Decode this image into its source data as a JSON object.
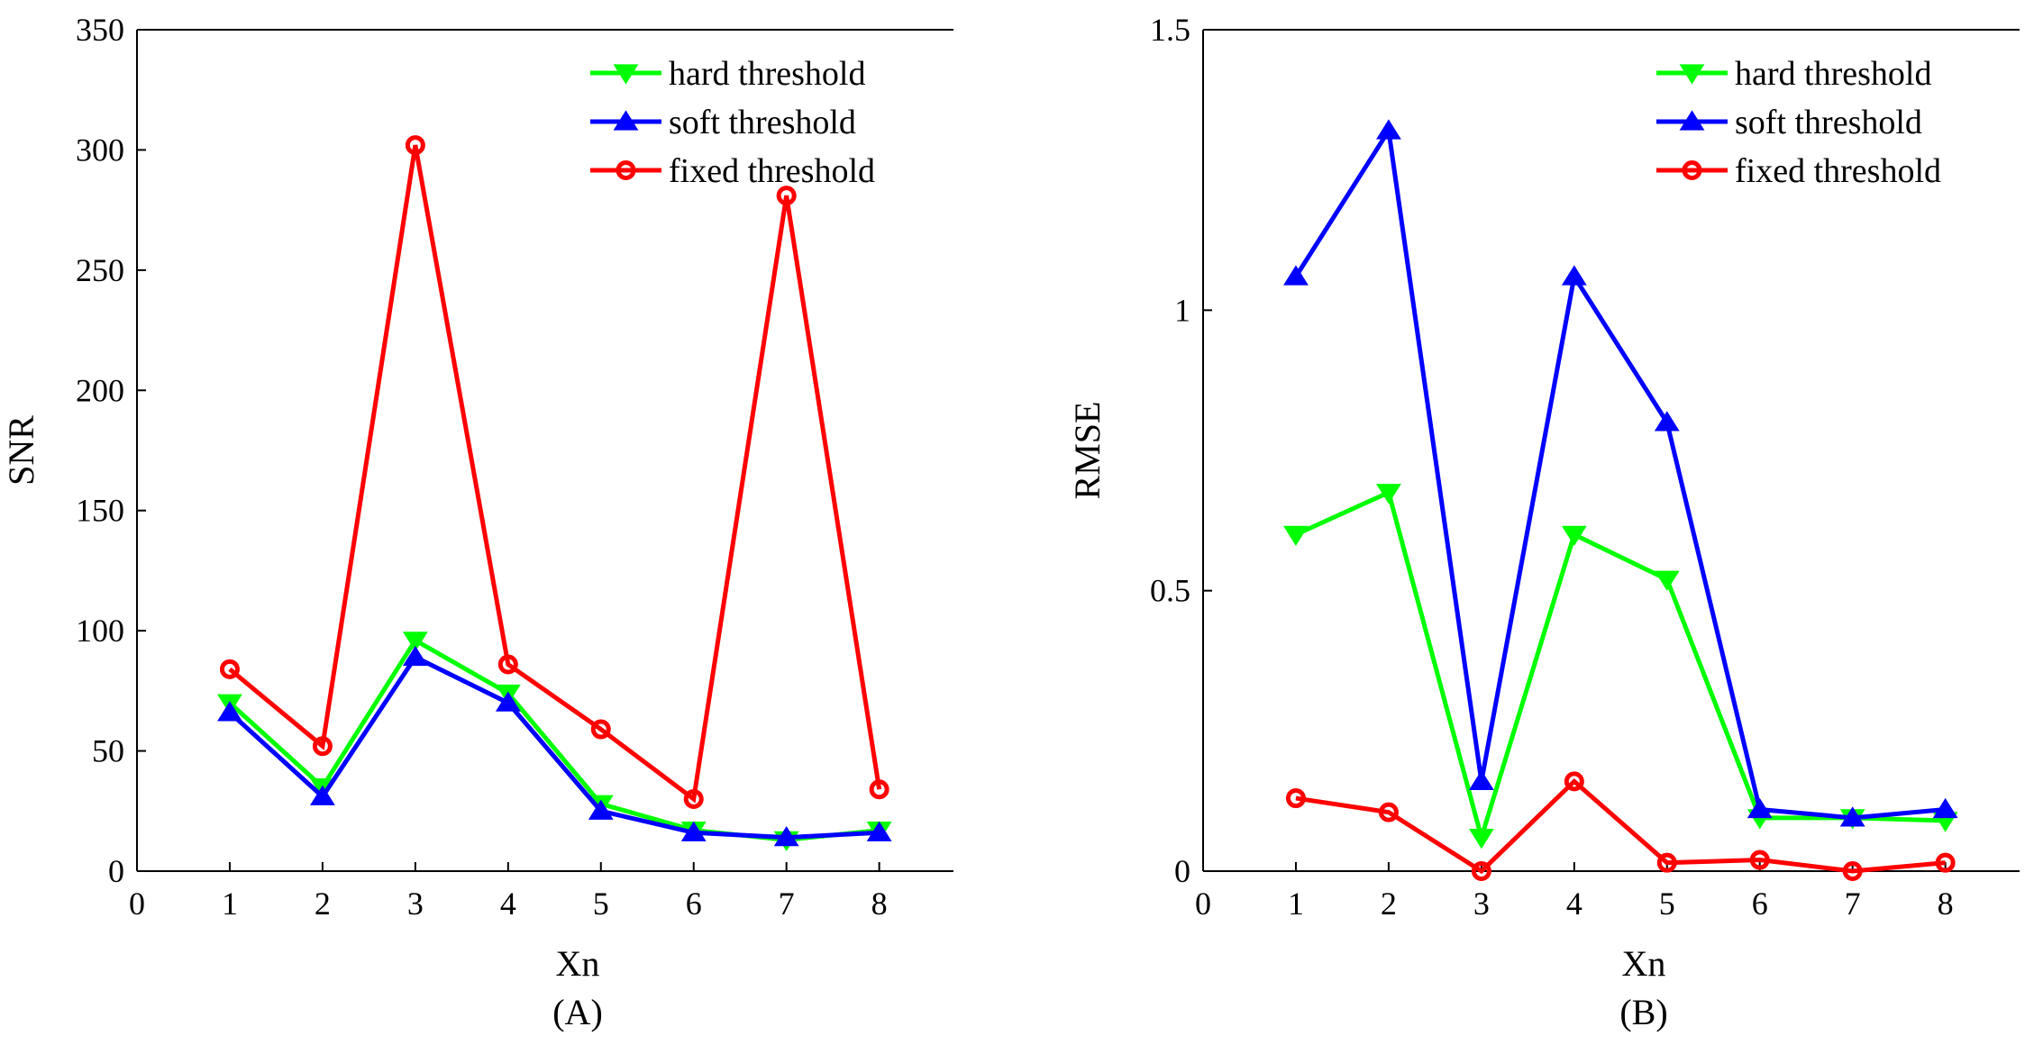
{
  "colors": {
    "hard": "#00ff00",
    "soft": "#0000ff",
    "fixed": "#ff0000"
  },
  "chart_data": [
    {
      "type": "line",
      "panel_label": "(A)",
      "xlabel": "Xn",
      "ylabel": "SNR",
      "xlim": [
        0,
        8.8
      ],
      "ylim": [
        0,
        350
      ],
      "xticks": [
        0,
        1,
        2,
        3,
        4,
        5,
        6,
        7,
        8
      ],
      "yticks": [
        0,
        50,
        100,
        150,
        200,
        250,
        300,
        350
      ],
      "xtick_labels": [
        "0",
        "1",
        "2",
        "3",
        "4",
        "5",
        "6",
        "7",
        "8"
      ],
      "ytick_labels": [
        "0",
        "50",
        "100",
        "150",
        "200",
        "250",
        "300",
        "350"
      ],
      "legend_position": "top-right",
      "x": [
        1,
        2,
        3,
        4,
        5,
        6,
        7,
        8
      ],
      "series": [
        {
          "name": "hard threshold",
          "key": "hard",
          "marker": "triangle-down",
          "values": [
            70,
            35,
            96,
            74,
            28,
            17,
            13,
            17
          ]
        },
        {
          "name": "soft threshold",
          "key": "soft",
          "marker": "triangle-up",
          "values": [
            66,
            31,
            89,
            70,
            25,
            16,
            14,
            16
          ]
        },
        {
          "name": "fixed threshold",
          "key": "fixed",
          "marker": "circle",
          "values": [
            84,
            52,
            302,
            86,
            59,
            30,
            281,
            34
          ]
        }
      ]
    },
    {
      "type": "line",
      "panel_label": "(B)",
      "xlabel": "Xn",
      "ylabel": "RMSE",
      "xlim": [
        0,
        8.8
      ],
      "ylim": [
        0,
        1.5
      ],
      "xticks": [
        0,
        1,
        2,
        3,
        4,
        5,
        6,
        7,
        8
      ],
      "yticks": [
        0,
        0.5,
        1,
        1.5
      ],
      "xtick_labels": [
        "0",
        "1",
        "2",
        "3",
        "4",
        "5",
        "6",
        "7",
        "8"
      ],
      "ytick_labels": [
        "0",
        "0.5",
        "1",
        "1.5"
      ],
      "legend_position": "top-right",
      "x": [
        1,
        2,
        3,
        4,
        5,
        6,
        7,
        8
      ],
      "series": [
        {
          "name": "hard threshold",
          "key": "hard",
          "marker": "triangle-down",
          "values": [
            0.6,
            0.675,
            0.06,
            0.6,
            0.52,
            0.095,
            0.095,
            0.09
          ]
        },
        {
          "name": "soft threshold",
          "key": "soft",
          "marker": "triangle-up",
          "values": [
            1.06,
            1.32,
            0.16,
            1.06,
            0.8,
            0.11,
            0.095,
            0.11
          ]
        },
        {
          "name": "fixed threshold",
          "key": "fixed",
          "marker": "circle",
          "values": [
            0.13,
            0.105,
            0.0,
            0.16,
            0.015,
            0.02,
            0.0,
            0.015
          ]
        }
      ]
    }
  ]
}
